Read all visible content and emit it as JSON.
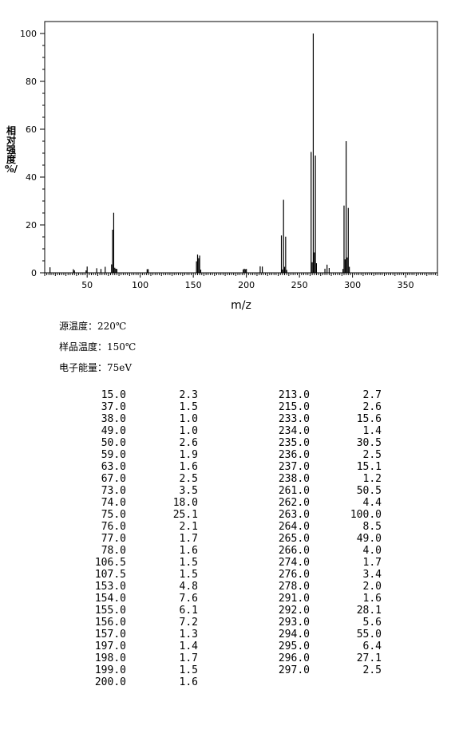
{
  "chart_data": {
    "type": "bar",
    "title": "",
    "xlabel": "m/z",
    "ylabel": [
      "相",
      "对",
      "强",
      "度",
      "%/"
    ],
    "xlim": [
      10,
      380
    ],
    "ylim": [
      0,
      105
    ],
    "x_ticks": [
      50,
      100,
      150,
      200,
      250,
      300,
      350
    ],
    "y_ticks": [
      0,
      20,
      40,
      60,
      80,
      100
    ],
    "grid": false,
    "color": "#000000",
    "peaks": [
      {
        "mz": 15.0,
        "intensity": 2.3
      },
      {
        "mz": 37.0,
        "intensity": 1.5
      },
      {
        "mz": 38.0,
        "intensity": 1.0
      },
      {
        "mz": 49.0,
        "intensity": 1.0
      },
      {
        "mz": 50.0,
        "intensity": 2.6
      },
      {
        "mz": 59.0,
        "intensity": 1.9
      },
      {
        "mz": 63.0,
        "intensity": 1.6
      },
      {
        "mz": 67.0,
        "intensity": 2.5
      },
      {
        "mz": 73.0,
        "intensity": 3.5
      },
      {
        "mz": 74.0,
        "intensity": 18.0
      },
      {
        "mz": 75.0,
        "intensity": 25.1
      },
      {
        "mz": 76.0,
        "intensity": 2.1
      },
      {
        "mz": 77.0,
        "intensity": 1.7
      },
      {
        "mz": 78.0,
        "intensity": 1.6
      },
      {
        "mz": 106.5,
        "intensity": 1.5
      },
      {
        "mz": 107.5,
        "intensity": 1.5
      },
      {
        "mz": 153.0,
        "intensity": 4.8
      },
      {
        "mz": 154.0,
        "intensity": 7.6
      },
      {
        "mz": 155.0,
        "intensity": 6.1
      },
      {
        "mz": 156.0,
        "intensity": 7.2
      },
      {
        "mz": 157.0,
        "intensity": 1.3
      },
      {
        "mz": 197.0,
        "intensity": 1.4
      },
      {
        "mz": 198.0,
        "intensity": 1.7
      },
      {
        "mz": 199.0,
        "intensity": 1.5
      },
      {
        "mz": 200.0,
        "intensity": 1.6
      },
      {
        "mz": 213.0,
        "intensity": 2.7
      },
      {
        "mz": 215.0,
        "intensity": 2.6
      },
      {
        "mz": 233.0,
        "intensity": 15.6
      },
      {
        "mz": 234.0,
        "intensity": 1.4
      },
      {
        "mz": 235.0,
        "intensity": 30.5
      },
      {
        "mz": 236.0,
        "intensity": 2.5
      },
      {
        "mz": 237.0,
        "intensity": 15.1
      },
      {
        "mz": 238.0,
        "intensity": 1.2
      },
      {
        "mz": 261.0,
        "intensity": 50.5
      },
      {
        "mz": 262.0,
        "intensity": 4.4
      },
      {
        "mz": 263.0,
        "intensity": 100.0
      },
      {
        "mz": 264.0,
        "intensity": 8.5
      },
      {
        "mz": 265.0,
        "intensity": 49.0
      },
      {
        "mz": 266.0,
        "intensity": 4.0
      },
      {
        "mz": 274.0,
        "intensity": 1.7
      },
      {
        "mz": 276.0,
        "intensity": 3.4
      },
      {
        "mz": 278.0,
        "intensity": 2.0
      },
      {
        "mz": 291.0,
        "intensity": 1.6
      },
      {
        "mz": 292.0,
        "intensity": 28.1
      },
      {
        "mz": 293.0,
        "intensity": 5.6
      },
      {
        "mz": 294.0,
        "intensity": 55.0
      },
      {
        "mz": 295.0,
        "intensity": 6.4
      },
      {
        "mz": 296.0,
        "intensity": 27.1
      },
      {
        "mz": 297.0,
        "intensity": 2.5
      }
    ]
  },
  "conditions": [
    {
      "label": "源温度",
      "value": "220℃"
    },
    {
      "label": "样品温度",
      "value": "150℃"
    },
    {
      "label": "电子能量",
      "value": "75eV"
    }
  ],
  "peak_table": {
    "columns": [
      [
        [
          "15.0",
          "2.3"
        ],
        [
          "37.0",
          "1.5"
        ],
        [
          "38.0",
          "1.0"
        ],
        [
          "49.0",
          "1.0"
        ],
        [
          "50.0",
          "2.6"
        ],
        [
          "59.0",
          "1.9"
        ],
        [
          "63.0",
          "1.6"
        ],
        [
          "67.0",
          "2.5"
        ],
        [
          "73.0",
          "3.5"
        ],
        [
          "74.0",
          "18.0"
        ],
        [
          "75.0",
          "25.1"
        ],
        [
          "76.0",
          "2.1"
        ],
        [
          "77.0",
          "1.7"
        ],
        [
          "78.0",
          "1.6"
        ],
        [
          "106.5",
          "1.5"
        ],
        [
          "107.5",
          "1.5"
        ],
        [
          "153.0",
          "4.8"
        ],
        [
          "154.0",
          "7.6"
        ],
        [
          "155.0",
          "6.1"
        ],
        [
          "156.0",
          "7.2"
        ],
        [
          "157.0",
          "1.3"
        ],
        [
          "197.0",
          "1.4"
        ],
        [
          "198.0",
          "1.7"
        ],
        [
          "199.0",
          "1.5"
        ],
        [
          "200.0",
          "1.6"
        ]
      ],
      [
        [
          "213.0",
          "2.7"
        ],
        [
          "215.0",
          "2.6"
        ],
        [
          "233.0",
          "15.6"
        ],
        [
          "234.0",
          "1.4"
        ],
        [
          "235.0",
          "30.5"
        ],
        [
          "236.0",
          "2.5"
        ],
        [
          "237.0",
          "15.1"
        ],
        [
          "238.0",
          "1.2"
        ],
        [
          "261.0",
          "50.5"
        ],
        [
          "262.0",
          "4.4"
        ],
        [
          "263.0",
          "100.0"
        ],
        [
          "264.0",
          "8.5"
        ],
        [
          "265.0",
          "49.0"
        ],
        [
          "266.0",
          "4.0"
        ],
        [
          "274.0",
          "1.7"
        ],
        [
          "276.0",
          "3.4"
        ],
        [
          "278.0",
          "2.0"
        ],
        [
          "291.0",
          "1.6"
        ],
        [
          "292.0",
          "28.1"
        ],
        [
          "293.0",
          "5.6"
        ],
        [
          "294.0",
          "55.0"
        ],
        [
          "295.0",
          "6.4"
        ],
        [
          "296.0",
          "27.1"
        ],
        [
          "297.0",
          "2.5"
        ]
      ]
    ]
  }
}
